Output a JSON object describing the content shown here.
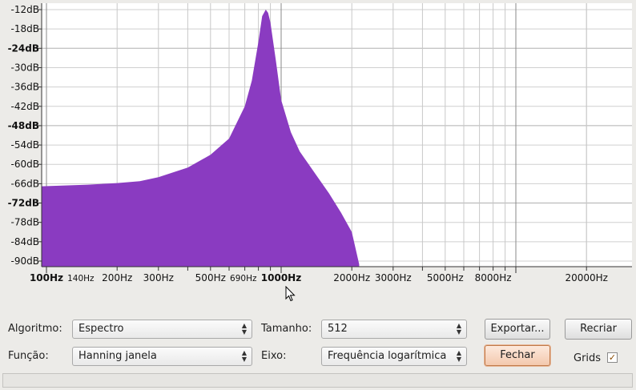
{
  "chart_data": {
    "type": "area",
    "x_scale": "log",
    "grid": true,
    "color": "#8a3bc1",
    "y_tick_labels": [
      "-12dB",
      "-18dB",
      "-24dB",
      "-30dB",
      "-36dB",
      "-42dB",
      "-48dB",
      "-54dB",
      "-60dB",
      "-66dB",
      "-72dB",
      "-78dB",
      "-84dB",
      "-90dB"
    ],
    "y_bold_labels": [
      "-24dB",
      "-48dB",
      "-72dB"
    ],
    "x_tick_labels": [
      {
        "label": "100Hz",
        "hz": 100,
        "weight": "bold"
      },
      {
        "label": "140Hz",
        "hz": 140,
        "weight": "small"
      },
      {
        "label": "200Hz",
        "hz": 200,
        "weight": "normal"
      },
      {
        "label": "300Hz",
        "hz": 300,
        "weight": "normal"
      },
      {
        "label": "500Hz",
        "hz": 500,
        "weight": "normal"
      },
      {
        "label": "690Hz",
        "hz": 690,
        "weight": "small"
      },
      {
        "label": "1000Hz",
        "hz": 1000,
        "weight": "bold"
      },
      {
        "label": "2000Hz",
        "hz": 2000,
        "weight": "normal"
      },
      {
        "label": "3000Hz",
        "hz": 3000,
        "weight": "normal"
      },
      {
        "label": "5000Hz",
        "hz": 5000,
        "weight": "normal"
      },
      {
        "label": "8000Hz",
        "hz": 8000,
        "weight": "normal"
      },
      {
        "label": "20000Hz",
        "hz": 20000,
        "weight": "normal"
      }
    ],
    "x": [
      86,
      150,
      200,
      250,
      300,
      400,
      500,
      600,
      700,
      750,
      800,
      830,
      860,
      880,
      900,
      950,
      1000,
      1100,
      1200,
      1400,
      1600,
      1800,
      2000,
      2150
    ],
    "y": [
      -66.8,
      -66.3,
      -65.8,
      -65.2,
      -64,
      -61,
      -57,
      -52,
      -42,
      -34,
      -22,
      -14,
      -12,
      -13,
      -16,
      -28,
      -40,
      -50,
      -56,
      -63,
      -69,
      -75,
      -81,
      -91
    ]
  },
  "controls": {
    "algorithm_label": "Algoritmo:",
    "algorithm_value": "Espectro",
    "size_label": "Tamanho:",
    "size_value": "512",
    "export_label": "Exportar...",
    "replot_label": "Recriar",
    "function_label": "Função:",
    "function_value": "Hanning janela",
    "axis_label": "Eixo:",
    "axis_value": "Frequência logarítmica",
    "close_label": "Fechar",
    "grids_label": "Grids",
    "grids_checked": true
  }
}
